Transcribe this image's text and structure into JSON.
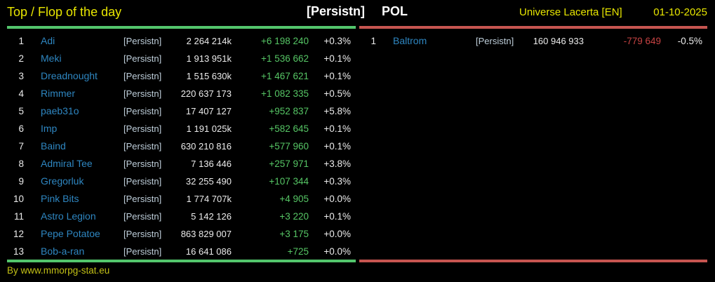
{
  "header": {
    "title": "Top / Flop of the day",
    "alliance_tag": "[Persistn]",
    "country": "POL",
    "universe": "Universe Lacerta [EN]",
    "date": "01-10-2025"
  },
  "top_table": {
    "rows": [
      {
        "rank": "1",
        "name": "Adi",
        "tag": "[Persistn]",
        "value": "2 264 214k",
        "change": "+6 198 240",
        "percent": "+0.3%"
      },
      {
        "rank": "2",
        "name": "Meki",
        "tag": "[Persistn]",
        "value": "1 913 951k",
        "change": "+1 536 662",
        "percent": "+0.1%"
      },
      {
        "rank": "3",
        "name": "Dreadnought",
        "tag": "[Persistn]",
        "value": "1 515 630k",
        "change": "+1 467 621",
        "percent": "+0.1%"
      },
      {
        "rank": "4",
        "name": "Rimmer",
        "tag": "[Persistn]",
        "value": "220 637 173",
        "change": "+1 082 335",
        "percent": "+0.5%"
      },
      {
        "rank": "5",
        "name": "paeb31o",
        "tag": "[Persistn]",
        "value": "17 407 127",
        "change": "+952 837",
        "percent": "+5.8%"
      },
      {
        "rank": "6",
        "name": "Imp",
        "tag": "[Persistn]",
        "value": "1 191 025k",
        "change": "+582 645",
        "percent": "+0.1%"
      },
      {
        "rank": "7",
        "name": "Baind",
        "tag": "[Persistn]",
        "value": "630 210 816",
        "change": "+577 960",
        "percent": "+0.1%"
      },
      {
        "rank": "8",
        "name": "Admiral Tee",
        "tag": "[Persistn]",
        "value": "7 136 446",
        "change": "+257 971",
        "percent": "+3.8%"
      },
      {
        "rank": "9",
        "name": "Gregorluk",
        "tag": "[Persistn]",
        "value": "32 255 490",
        "change": "+107 344",
        "percent": "+0.3%"
      },
      {
        "rank": "10",
        "name": "Pink Bits",
        "tag": "[Persistn]",
        "value": "1 774 707k",
        "change": "+4 905",
        "percent": "+0.0%"
      },
      {
        "rank": "11",
        "name": "Astro Legion",
        "tag": "[Persistn]",
        "value": "5 142 126",
        "change": "+3 220",
        "percent": "+0.1%"
      },
      {
        "rank": "12",
        "name": "Pepe Potatoe",
        "tag": "[Persistn]",
        "value": "863 829 007",
        "change": "+3 175",
        "percent": "+0.0%"
      },
      {
        "rank": "13",
        "name": "Bob-a-ran",
        "tag": "[Persistn]",
        "value": "16 641 086",
        "change": "+725",
        "percent": "+0.0%"
      }
    ]
  },
  "flop_table": {
    "rows": [
      {
        "rank": "1",
        "name": "Baltrom",
        "tag": "[Persistn]",
        "value": "160 946 933",
        "change": "-779 649",
        "percent": "-0.5%"
      }
    ]
  },
  "footer": {
    "credit": "By www.mmorpg-stat.eu"
  },
  "colors": {
    "background": "#000000",
    "header_yellow": "#e8e600",
    "name_blue": "#2e86c1",
    "tag_gray_blue": "#bfcfdb",
    "value_white": "#ececec",
    "gain_green": "#56c665",
    "loss_red": "#c74343",
    "rule_green": "#53c56c",
    "rule_red": "#c65550",
    "footer_yellow": "#c3c116"
  }
}
